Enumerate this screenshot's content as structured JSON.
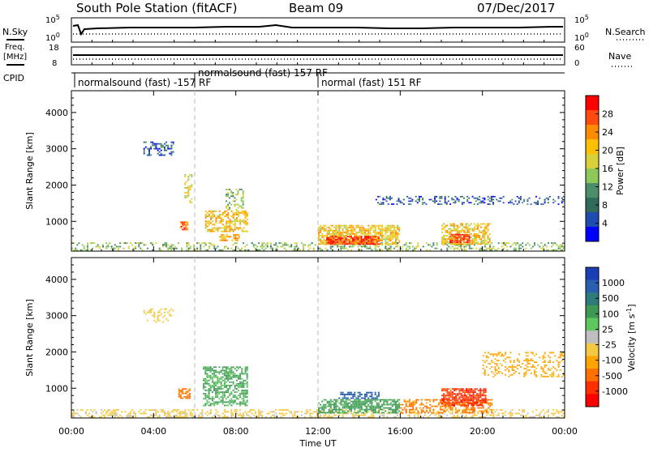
{
  "header": {
    "station": "South Pole Station (fitACF)",
    "beam": "Beam 09",
    "date": "07/Dec/2017"
  },
  "strips": {
    "nsky": {
      "label": "N.Sky",
      "tick_top": "10^5",
      "tick_bottom": "10^0"
    },
    "nsearch": {
      "label": "N.Search",
      "tick_top": "10^5",
      "tick_bottom": "10^0"
    },
    "freq": {
      "label_line1": "Freq.",
      "label_line2": "[MHz]",
      "tick_top": "18",
      "tick_bottom": "8"
    },
    "nave": {
      "label": "Nave",
      "tick_top": "60",
      "tick_bottom": "0"
    },
    "cpid": {
      "label": "CPID",
      "segments": [
        {
          "text": "normalsound (fast) -157 RF",
          "start_hour": 0
        },
        {
          "text": "normalsound (fast) 157 RF",
          "start_hour": 6
        },
        {
          "text": "normal (fast) 151 RF",
          "start_hour": 12
        }
      ]
    }
  },
  "panels": {
    "power": {
      "ylabel": "Slant Range [km]",
      "cbar_label": "Power [dB]",
      "cbar_ticks": [
        "28",
        "24",
        "20",
        "16",
        "12",
        "8",
        "4"
      ],
      "cbar_colors": [
        "#ff0000",
        "#ff4a10",
        "#ff8c00",
        "#ffc000",
        "#d9d13a",
        "#8fc85a",
        "#4a8f6a",
        "#2e6b5a",
        "#1e4db0",
        "#0000ff"
      ]
    },
    "velocity": {
      "ylabel": "Slant Range [km]",
      "cbar_label": "Velocity [m s^-1]",
      "cbar_ticks": [
        "1000",
        "500",
        "100",
        "25",
        "-25",
        "-100",
        "-500",
        "-1000"
      ],
      "cbar_colors": [
        "#1a3fb5",
        "#2a5fb0",
        "#2f7a7a",
        "#3f9955",
        "#5ec85e",
        "#bfbfbf",
        "#f5c842",
        "#ffa500",
        "#ff7000",
        "#ff3000",
        "#ff0000"
      ]
    }
  },
  "xaxis": {
    "label": "Time UT",
    "ticks": [
      "00:00",
      "04:00",
      "08:00",
      "12:00",
      "16:00",
      "20:00",
      "00:00"
    ]
  },
  "chart_data": [
    {
      "type": "heatmap",
      "title": "South Pole Station (fitACF) Beam 09 07/Dec/2017",
      "xlabel": "Time UT",
      "ylabel": "Slant Range [km]",
      "xlim": [
        0,
        24
      ],
      "ylim": [
        180,
        4600
      ],
      "yticks": [
        1000,
        2000,
        3000,
        4000
      ],
      "zlabel": "Power [dB]",
      "zlim": [
        0,
        32
      ],
      "regions": [
        {
          "t": [
            0.0,
            24.0
          ],
          "r": [
            180,
            420
          ],
          "value": 14,
          "density": 0.35
        },
        {
          "t": [
            5.3,
            5.7
          ],
          "r": [
            750,
            1000
          ],
          "value": 26,
          "density": 0.8
        },
        {
          "t": [
            5.5,
            5.9
          ],
          "r": [
            1500,
            2300
          ],
          "value": 18,
          "density": 0.4
        },
        {
          "t": [
            6.5,
            8.6
          ],
          "r": [
            700,
            1300
          ],
          "value": 20,
          "density": 0.6
        },
        {
          "t": [
            7.5,
            8.4
          ],
          "r": [
            1300,
            1900
          ],
          "value": 14,
          "density": 0.45
        },
        {
          "t": [
            7.2,
            8.2
          ],
          "r": [
            450,
            650
          ],
          "value": 22,
          "density": 0.6
        },
        {
          "t": [
            12.0,
            16.0
          ],
          "r": [
            350,
            900
          ],
          "value": 20,
          "density": 0.75
        },
        {
          "t": [
            12.4,
            15.0
          ],
          "r": [
            350,
            600
          ],
          "value": 28,
          "density": 0.85
        },
        {
          "t": [
            18.0,
            20.4
          ],
          "r": [
            350,
            950
          ],
          "value": 20,
          "density": 0.6
        },
        {
          "t": [
            18.4,
            19.4
          ],
          "r": [
            400,
            650
          ],
          "value": 28,
          "density": 0.8
        },
        {
          "t": [
            14.8,
            24.0
          ],
          "r": [
            1450,
            1700
          ],
          "value": 6,
          "density": 0.3
        },
        {
          "t": [
            3.5,
            5.0
          ],
          "r": [
            2800,
            3200
          ],
          "value": 6,
          "density": 0.3
        }
      ]
    },
    {
      "type": "heatmap",
      "xlabel": "Time UT",
      "ylabel": "Slant Range [km]",
      "xlim": [
        0,
        24
      ],
      "ylim": [
        180,
        4600
      ],
      "yticks": [
        1000,
        2000,
        3000,
        4000
      ],
      "zlabel": "Velocity [m s^-1]",
      "zlim": [
        -1000,
        1000
      ],
      "regions": [
        {
          "t": [
            0.0,
            24.0
          ],
          "r": [
            180,
            420
          ],
          "value": 10,
          "density": 0.4
        },
        {
          "t": [
            5.2,
            5.8
          ],
          "r": [
            700,
            1000
          ],
          "value": -150,
          "density": 0.7
        },
        {
          "t": [
            6.4,
            8.6
          ],
          "r": [
            500,
            1600
          ],
          "value": 120,
          "density": 0.6
        },
        {
          "t": [
            12.0,
            16.0
          ],
          "r": [
            300,
            700
          ],
          "value": 150,
          "density": 0.7
        },
        {
          "t": [
            13.0,
            15.0
          ],
          "r": [
            700,
            900
          ],
          "value": 700,
          "density": 0.5
        },
        {
          "t": [
            16.0,
            20.5
          ],
          "r": [
            300,
            700
          ],
          "value": -120,
          "density": 0.5
        },
        {
          "t": [
            18.0,
            20.2
          ],
          "r": [
            500,
            1000
          ],
          "value": -400,
          "density": 0.8
        },
        {
          "t": [
            20.0,
            24.0
          ],
          "r": [
            1300,
            2000
          ],
          "value": -50,
          "density": 0.3
        },
        {
          "t": [
            3.5,
            5.0
          ],
          "r": [
            2800,
            3200
          ],
          "value": 0,
          "density": 0.3
        }
      ]
    }
  ]
}
